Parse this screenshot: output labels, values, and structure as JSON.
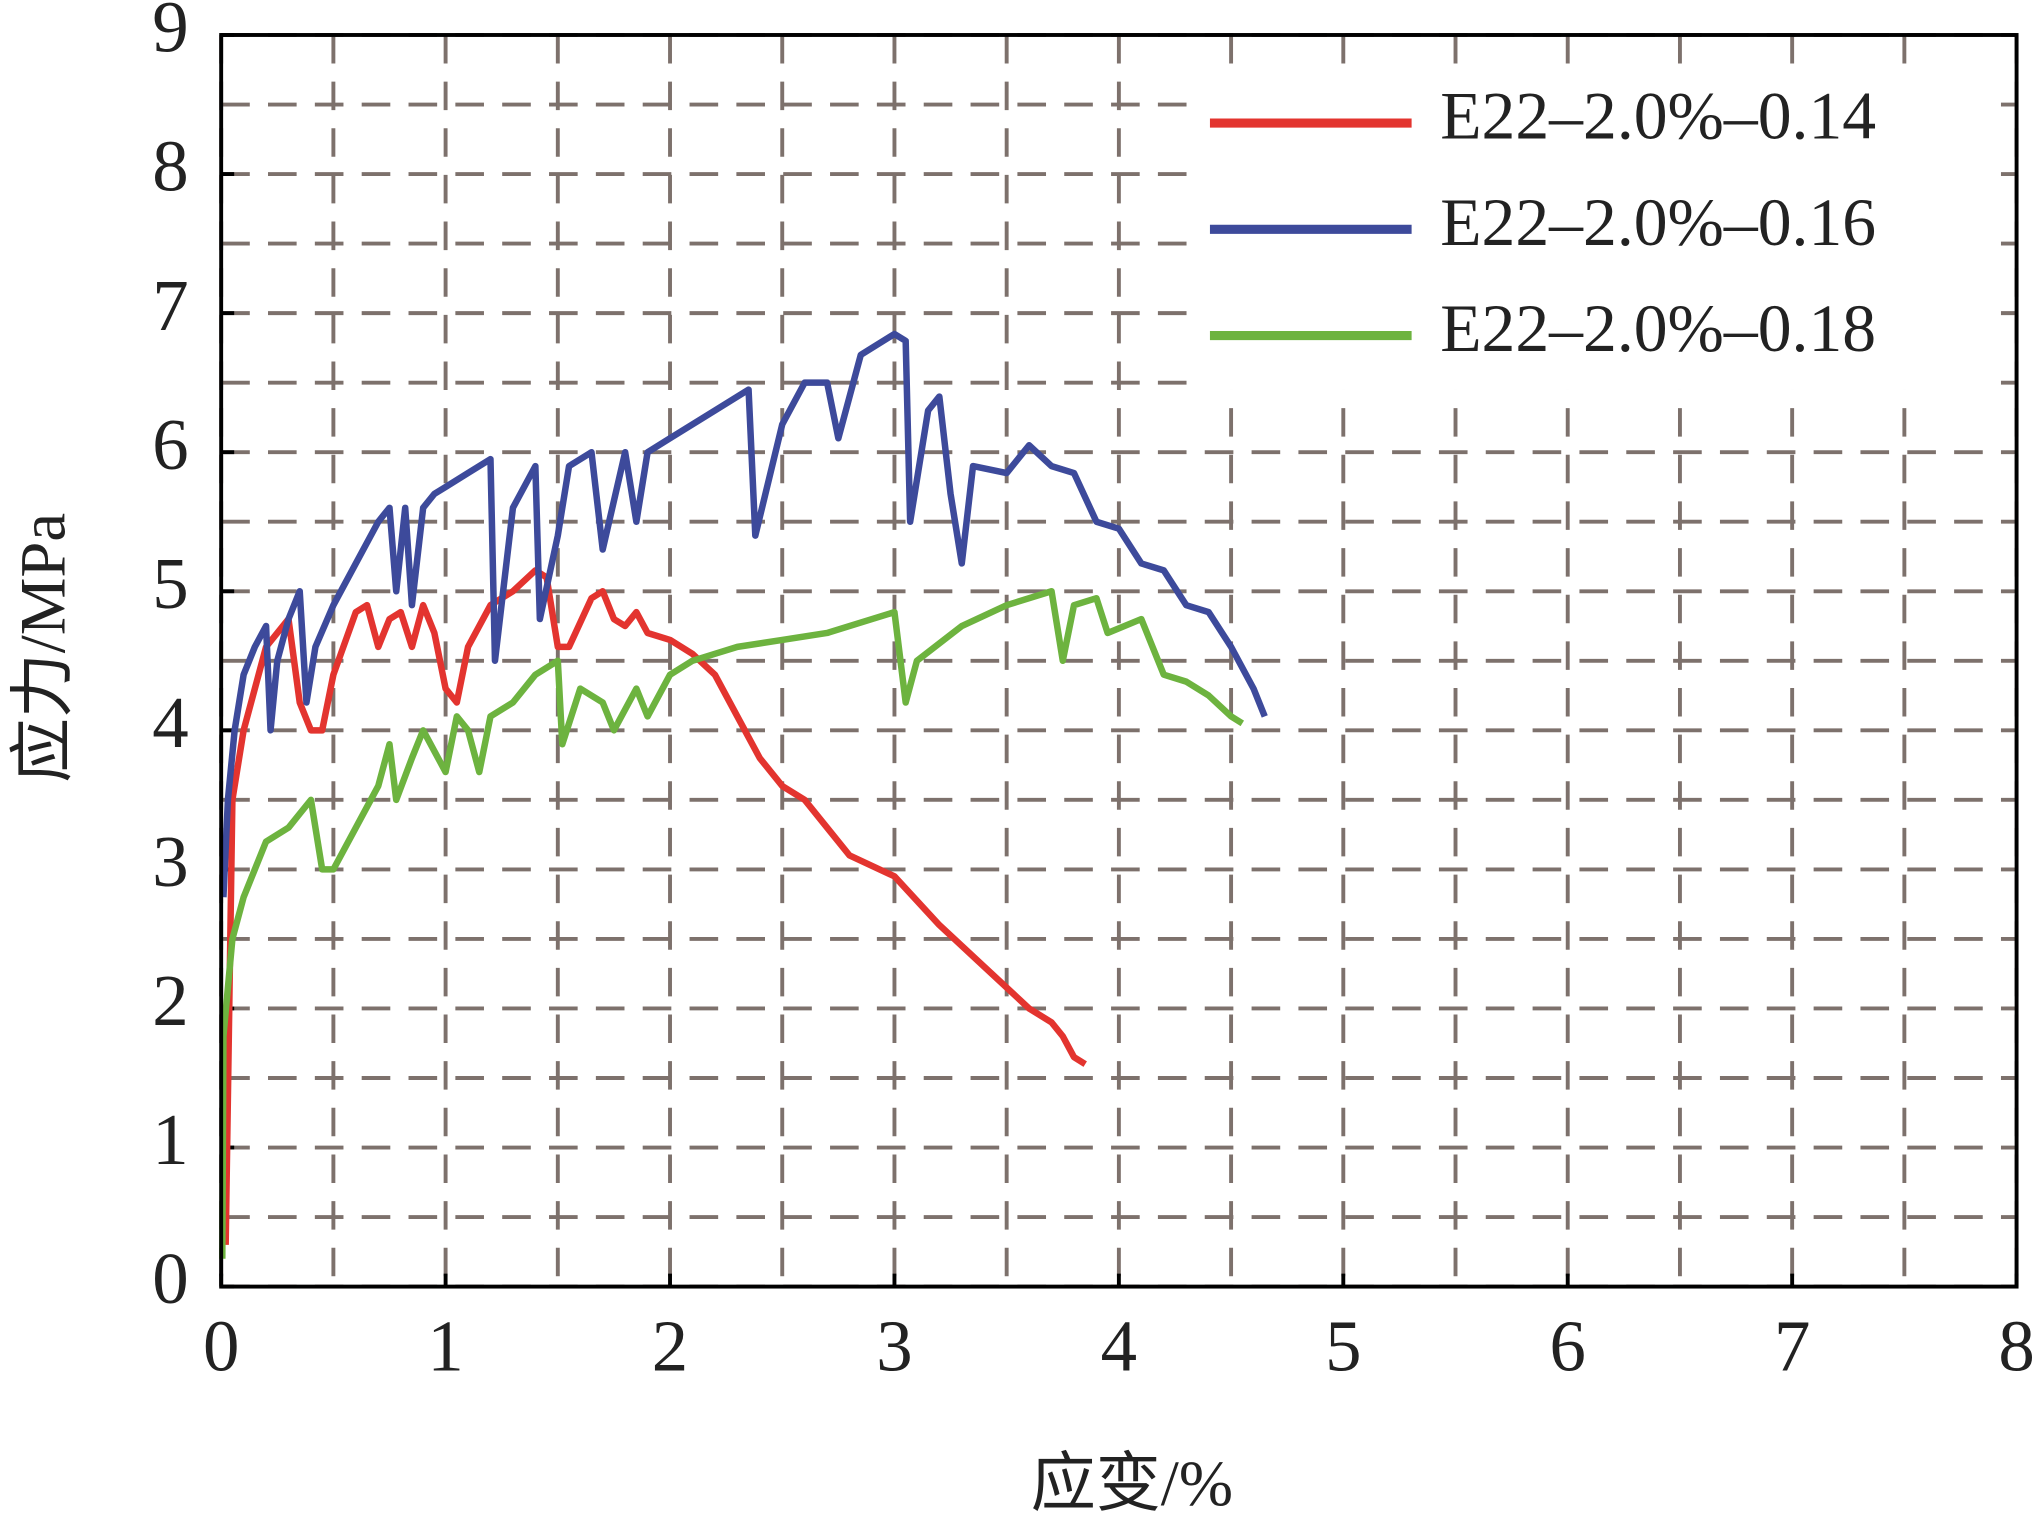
{
  "chart_data": {
    "type": "line",
    "x_label": "应变/%",
    "y_label": "应力/MPa",
    "xlim": [
      0,
      8
    ],
    "ylim": [
      0,
      9
    ],
    "xticks": [
      0,
      1,
      2,
      3,
      4,
      5,
      6,
      7,
      8
    ],
    "yticks": [
      0,
      1,
      2,
      3,
      4,
      5,
      6,
      7,
      8,
      9
    ],
    "xminor": [
      0.5,
      1.5,
      2.5,
      3.5,
      4.5,
      5.5,
      6.5,
      7.5
    ],
    "yminor": [
      0.5,
      1.5,
      2.5,
      3.5,
      4.5,
      5.5,
      6.5,
      7.5,
      8.5
    ],
    "grid": true,
    "legend": "upper right",
    "series": [
      {
        "name": "E22–2.0%–0.14",
        "color": "#e3342f",
        "x": [
          0.02,
          0.05,
          0.1,
          0.15,
          0.2,
          0.3,
          0.35,
          0.4,
          0.45,
          0.5,
          0.6,
          0.65,
          0.7,
          0.75,
          0.8,
          0.85,
          0.9,
          0.95,
          1.0,
          1.05,
          1.1,
          1.2,
          1.3,
          1.4,
          1.45,
          1.5,
          1.55,
          1.65,
          1.7,
          1.75,
          1.8,
          1.85,
          1.9,
          2.0,
          2.1,
          2.2,
          2.3,
          2.4,
          2.5,
          2.6,
          2.7,
          2.8,
          3.0,
          3.2,
          3.4,
          3.6,
          3.7,
          3.75,
          3.8,
          3.85
        ],
        "values": [
          0.3,
          3.5,
          4.0,
          4.3,
          4.6,
          4.8,
          4.2,
          4.0,
          4.0,
          4.4,
          4.85,
          4.9,
          4.6,
          4.8,
          4.85,
          4.6,
          4.9,
          4.7,
          4.3,
          4.2,
          4.6,
          4.9,
          5.0,
          5.15,
          5.1,
          4.6,
          4.6,
          4.95,
          5.0,
          4.8,
          4.75,
          4.85,
          4.7,
          4.65,
          4.55,
          4.4,
          4.1,
          3.8,
          3.6,
          3.5,
          3.3,
          3.1,
          2.95,
          2.6,
          2.3,
          2.0,
          1.9,
          1.8,
          1.65,
          1.6
        ]
      },
      {
        "name": "E22–2.0%–0.16",
        "color": "#3d4a9b",
        "x": [
          0.01,
          0.03,
          0.06,
          0.1,
          0.15,
          0.2,
          0.22,
          0.25,
          0.3,
          0.35,
          0.38,
          0.42,
          0.5,
          0.6,
          0.7,
          0.75,
          0.78,
          0.82,
          0.85,
          0.9,
          0.95,
          1.0,
          1.1,
          1.2,
          1.22,
          1.3,
          1.4,
          1.42,
          1.5,
          1.55,
          1.65,
          1.7,
          1.8,
          1.85,
          1.9,
          2.0,
          2.2,
          2.35,
          2.38,
          2.5,
          2.6,
          2.7,
          2.75,
          2.85,
          2.9,
          3.0,
          3.05,
          3.07,
          3.15,
          3.2,
          3.25,
          3.3,
          3.35,
          3.5,
          3.6,
          3.7,
          3.8,
          3.9,
          4.0,
          4.1,
          4.2,
          4.3,
          4.4,
          4.5,
          4.6,
          4.65
        ],
        "values": [
          2.8,
          3.5,
          4.0,
          4.4,
          4.6,
          4.75,
          4.0,
          4.5,
          4.8,
          5.0,
          4.2,
          4.6,
          4.9,
          5.2,
          5.5,
          5.6,
          5.0,
          5.6,
          4.9,
          5.6,
          5.7,
          5.75,
          5.85,
          5.95,
          4.5,
          5.6,
          5.9,
          4.8,
          5.4,
          5.9,
          6.0,
          5.3,
          6.0,
          5.5,
          6.0,
          6.1,
          6.3,
          6.45,
          5.4,
          6.2,
          6.5,
          6.5,
          6.1,
          6.7,
          6.75,
          6.85,
          6.8,
          5.5,
          6.3,
          6.4,
          5.7,
          5.2,
          5.9,
          5.85,
          6.05,
          5.9,
          5.85,
          5.5,
          5.45,
          5.2,
          5.15,
          4.9,
          4.85,
          4.6,
          4.3,
          4.1
        ]
      },
      {
        "name": "E22–2.0%–0.18",
        "color": "#6db33f",
        "x": [
          0.005,
          0.01,
          0.05,
          0.1,
          0.15,
          0.2,
          0.3,
          0.35,
          0.4,
          0.45,
          0.5,
          0.6,
          0.7,
          0.75,
          0.78,
          0.85,
          0.9,
          0.95,
          1.0,
          1.05,
          1.1,
          1.15,
          1.2,
          1.3,
          1.4,
          1.5,
          1.52,
          1.6,
          1.7,
          1.75,
          1.85,
          1.9,
          2.0,
          2.1,
          2.2,
          2.3,
          2.5,
          2.7,
          2.9,
          3.0,
          3.05,
          3.1,
          3.3,
          3.5,
          3.7,
          3.75,
          3.8,
          3.9,
          3.95,
          4.1,
          4.2,
          4.3,
          4.4,
          4.5,
          4.55
        ],
        "values": [
          0.2,
          1.8,
          2.5,
          2.8,
          3.0,
          3.2,
          3.3,
          3.4,
          3.5,
          3.0,
          3.0,
          3.3,
          3.6,
          3.9,
          3.5,
          3.8,
          4.0,
          3.85,
          3.7,
          4.1,
          4.0,
          3.7,
          4.1,
          4.2,
          4.4,
          4.5,
          3.9,
          4.3,
          4.2,
          4.0,
          4.3,
          4.1,
          4.4,
          4.5,
          4.55,
          4.6,
          4.65,
          4.7,
          4.8,
          4.85,
          4.2,
          4.5,
          4.75,
          4.9,
          5.0,
          4.5,
          4.9,
          4.95,
          4.7,
          4.8,
          4.4,
          4.35,
          4.25,
          4.1,
          4.05
        ]
      }
    ]
  }
}
